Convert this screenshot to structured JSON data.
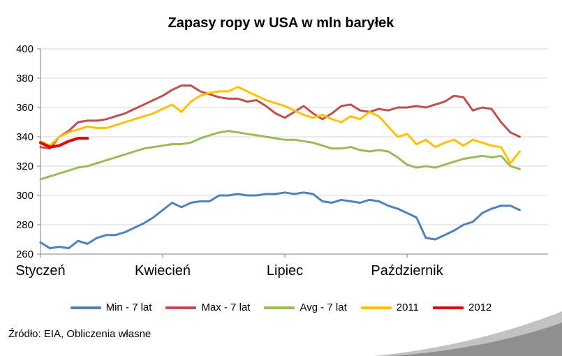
{
  "title": "Zapasy ropy w USA w mln baryłek",
  "source": "Źródło: EIA, Obliczenia własne",
  "chart_data": {
    "type": "line",
    "x_unit": "week-of-year",
    "x_range": [
      1,
      55
    ],
    "ylim": [
      260,
      400
    ],
    "y_ticks": [
      260,
      280,
      300,
      320,
      340,
      360,
      380,
      400
    ],
    "x_ticks": [
      {
        "week": 1,
        "label": "Styczeń"
      },
      {
        "week": 14,
        "label": "Kwiecień"
      },
      {
        "week": 27,
        "label": "Lipiec"
      },
      {
        "week": 40,
        "label": "Październik"
      }
    ],
    "grid": "horizontal",
    "grid_color": "#d9d9d9",
    "axis_color": "#808080",
    "legend_position": "bottom",
    "series": [
      {
        "name": "Min - 7 lat",
        "color": "#4F81BD",
        "width": 3,
        "values": [
          268,
          264,
          265,
          264,
          269,
          267,
          271,
          273,
          273,
          275,
          278,
          281,
          285,
          290,
          295,
          292,
          295,
          296,
          296,
          300,
          300,
          301,
          300,
          300,
          301,
          301,
          302,
          301,
          302,
          301,
          296,
          295,
          297,
          296,
          295,
          297,
          296,
          293,
          291,
          288,
          285,
          271,
          270,
          273,
          276,
          280,
          282,
          288,
          291,
          293,
          293,
          290
        ]
      },
      {
        "name": "Max - 7 lat",
        "color": "#C0504D",
        "width": 3,
        "values": [
          333,
          332,
          340,
          344,
          350,
          351,
          351,
          352,
          354,
          356,
          359,
          362,
          365,
          368,
          372,
          375,
          375,
          371,
          369,
          367,
          366,
          366,
          364,
          365,
          361,
          356,
          353,
          357,
          361,
          356,
          352,
          356,
          361,
          362,
          358,
          357,
          359,
          358,
          360,
          360,
          361,
          360,
          362,
          364,
          368,
          367,
          358,
          360,
          359,
          350,
          343,
          340
        ]
      },
      {
        "name": "Avg - 7 lat",
        "color": "#9BBB59",
        "width": 3,
        "values": [
          311,
          313,
          315,
          317,
          319,
          320,
          322,
          324,
          326,
          328,
          330,
          332,
          333,
          334,
          335,
          335,
          336,
          339,
          341,
          343,
          344,
          343,
          342,
          341,
          340,
          339,
          338,
          338,
          337,
          336,
          334,
          332,
          332,
          333,
          331,
          330,
          331,
          330,
          326,
          321,
          319,
          320,
          319,
          321,
          323,
          325,
          326,
          327,
          326,
          327,
          320,
          318
        ]
      },
      {
        "name": "2011",
        "color": "#FFC000",
        "width": 3,
        "values": [
          337,
          334,
          340,
          343,
          345,
          347,
          346,
          346,
          348,
          350,
          352,
          354,
          356,
          359,
          362,
          357,
          364,
          368,
          370,
          371,
          371,
          374,
          371,
          368,
          365,
          363,
          361,
          358,
          355,
          353,
          355,
          352,
          350,
          354,
          352,
          357,
          354,
          347,
          340,
          342,
          335,
          338,
          333,
          336,
          338,
          334,
          338,
          336,
          334,
          333,
          322,
          330
        ]
      },
      {
        "name": "2012",
        "color": "#E60000",
        "width": 4,
        "values": [
          336,
          333,
          334,
          337,
          339,
          339
        ]
      }
    ]
  }
}
